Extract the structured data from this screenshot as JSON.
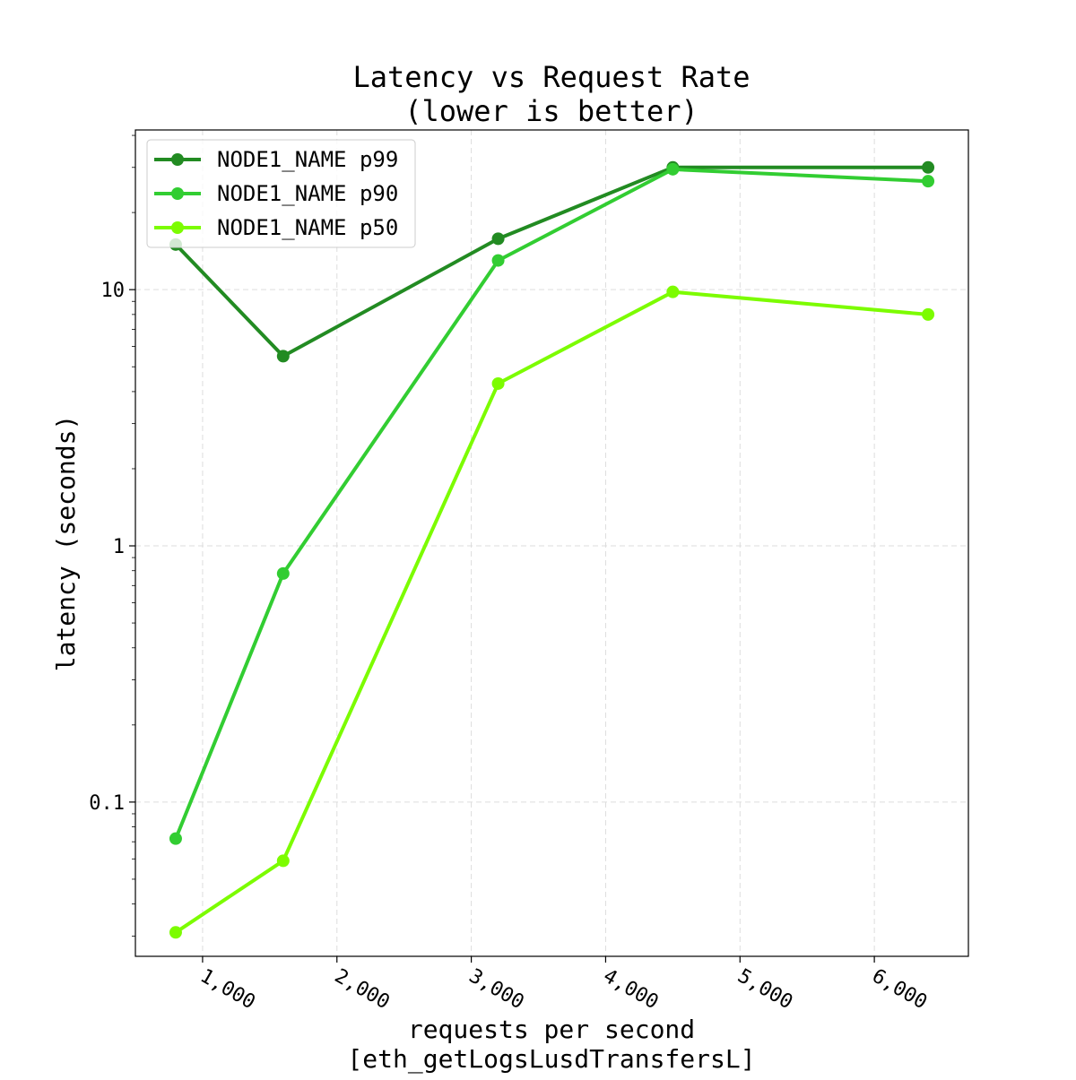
{
  "chart_data": {
    "type": "line",
    "title_lines": [
      "Latency vs Request Rate",
      "(lower is better)"
    ],
    "xlabel_lines": [
      "requests per second",
      "[eth_getLogsLusdTransfersL]"
    ],
    "ylabel": "latency (seconds)",
    "xscale": "linear",
    "yscale": "log",
    "xlim": [
      500,
      6700
    ],
    "ylim": [
      0.025,
      42
    ],
    "x_ticks": [
      1000,
      2000,
      3000,
      4000,
      5000,
      6000
    ],
    "x_tick_labels": [
      "1,000",
      "2,000",
      "3,000",
      "4,000",
      "5,000",
      "6,000"
    ],
    "y_ticks": [
      0.1,
      1,
      10
    ],
    "y_tick_labels": [
      "0.1",
      "1",
      "10"
    ],
    "grid": true,
    "legend_position": "top-left",
    "x": [
      800,
      1600,
      3200,
      4500,
      6400
    ],
    "series": [
      {
        "name": "NODE1_NAME p99",
        "color": "#228b22",
        "values": [
          15.0,
          5.5,
          15.8,
          30.0,
          30.0
        ]
      },
      {
        "name": "NODE1_NAME p90",
        "color": "#32cd32",
        "values": [
          0.072,
          0.78,
          13.0,
          29.5,
          26.5
        ]
      },
      {
        "name": "NODE1_NAME p50",
        "color": "#7cfc00",
        "values": [
          0.031,
          0.059,
          4.3,
          9.8,
          8.0
        ]
      }
    ]
  }
}
